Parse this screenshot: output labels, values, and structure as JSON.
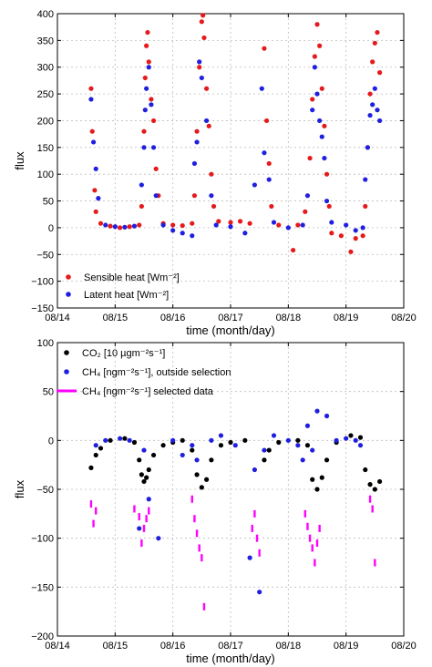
{
  "chart_data": [
    {
      "type": "scatter",
      "xlabel": "time (month/day)",
      "ylabel": "flux",
      "xlim": [
        "08/14",
        "08/20"
      ],
      "ylim": [
        -150,
        400
      ],
      "x_ticks": [
        "08/14",
        "08/15",
        "08/16",
        "08/17",
        "08/18",
        "08/19",
        "08/20"
      ],
      "y_ticks": [
        -150,
        -100,
        -50,
        0,
        50,
        100,
        150,
        200,
        250,
        300,
        350,
        400
      ],
      "grid": true,
      "legend": "bottom-left",
      "series": [
        {
          "name": "Sensible heat [Wm⁻²]",
          "color": "#e41a1c",
          "marker": "dot",
          "points": [
            [
              "08/14 14:00",
              260
            ],
            [
              "08/14 14:30",
              180
            ],
            [
              "08/14 15:30",
              70
            ],
            [
              "08/14 16:00",
              30
            ],
            [
              "08/14 18:00",
              8
            ],
            [
              "08/14 22:00",
              3
            ],
            [
              "08/15 02:00",
              0
            ],
            [
              "08/15 06:00",
              2
            ],
            [
              "08/15 10:00",
              5
            ],
            [
              "08/15 11:00",
              40
            ],
            [
              "08/15 12:00",
              180
            ],
            [
              "08/15 12:30",
              280
            ],
            [
              "08/15 13:00",
              340
            ],
            [
              "08/15 13:30",
              365
            ],
            [
              "08/15 14:00",
              310
            ],
            [
              "08/15 15:00",
              240
            ],
            [
              "08/15 16:00",
              200
            ],
            [
              "08/15 17:00",
              110
            ],
            [
              "08/15 18:00",
              60
            ],
            [
              "08/15 20:00",
              8
            ],
            [
              "08/16 00:00",
              5
            ],
            [
              "08/16 04:00",
              4
            ],
            [
              "08/16 08:00",
              8
            ],
            [
              "08/16 09:00",
              60
            ],
            [
              "08/16 10:00",
              180
            ],
            [
              "08/16 11:00",
              300
            ],
            [
              "08/16 12:00",
              385
            ],
            [
              "08/16 12:30",
              397
            ],
            [
              "08/16 13:00",
              355
            ],
            [
              "08/16 14:00",
              260
            ],
            [
              "08/16 15:00",
              190
            ],
            [
              "08/16 16:00",
              100
            ],
            [
              "08/16 17:00",
              40
            ],
            [
              "08/16 19:00",
              12
            ],
            [
              "08/17 00:00",
              10
            ],
            [
              "08/17 04:00",
              12
            ],
            [
              "08/17 08:00",
              8
            ],
            [
              "08/17 14:00",
              335
            ],
            [
              "08/17 15:00",
              200
            ],
            [
              "08/17 16:00",
              120
            ],
            [
              "08/17 17:00",
              40
            ],
            [
              "08/17 20:00",
              5
            ],
            [
              "08/18 02:00",
              -42
            ],
            [
              "08/18 04:00",
              5
            ],
            [
              "08/18 07:00",
              30
            ],
            [
              "08/18 09:00",
              130
            ],
            [
              "08/18 10:00",
              240
            ],
            [
              "08/18 11:00",
              320
            ],
            [
              "08/18 12:00",
              380
            ],
            [
              "08/18 13:00",
              340
            ],
            [
              "08/18 14:00",
              260
            ],
            [
              "08/18 15:00",
              190
            ],
            [
              "08/18 16:00",
              100
            ],
            [
              "08/18 17:00",
              40
            ],
            [
              "08/18 18:00",
              -10
            ],
            [
              "08/18 22:00",
              -15
            ],
            [
              "08/19 02:00",
              -45
            ],
            [
              "08/19 04:00",
              -20
            ],
            [
              "08/19 07:00",
              -15
            ],
            [
              "08/19 08:00",
              40
            ],
            [
              "08/19 09:00",
              150
            ],
            [
              "08/19 10:00",
              250
            ],
            [
              "08/19 11:00",
              310
            ],
            [
              "08/19 12:00",
              345
            ],
            [
              "08/19 13:00",
              365
            ],
            [
              "08/19 14:00",
              290
            ]
          ]
        },
        {
          "name": "Latent heat [Wm⁻²]",
          "color": "#1f1fe0",
          "marker": "dot",
          "points": [
            [
              "08/14 14:00",
              240
            ],
            [
              "08/14 15:00",
              160
            ],
            [
              "08/14 16:00",
              110
            ],
            [
              "08/14 17:00",
              55
            ],
            [
              "08/14 20:00",
              5
            ],
            [
              "08/15 00:00",
              2
            ],
            [
              "08/15 04:00",
              1
            ],
            [
              "08/15 08:00",
              3
            ],
            [
              "08/15 11:00",
              80
            ],
            [
              "08/15 12:00",
              150
            ],
            [
              "08/15 12:30",
              220
            ],
            [
              "08/15 13:00",
              260
            ],
            [
              "08/15 14:00",
              300
            ],
            [
              "08/15 15:00",
              230
            ],
            [
              "08/15 16:00",
              150
            ],
            [
              "08/15 17:00",
              60
            ],
            [
              "08/15 20:00",
              5
            ],
            [
              "08/16 00:00",
              -5
            ],
            [
              "08/16 04:00",
              -10
            ],
            [
              "08/16 08:00",
              -15
            ],
            [
              "08/16 09:00",
              120
            ],
            [
              "08/16 10:00",
              160
            ],
            [
              "08/16 11:00",
              310
            ],
            [
              "08/16 12:00",
              280
            ],
            [
              "08/16 14:00",
              200
            ],
            [
              "08/16 16:00",
              60
            ],
            [
              "08/16 18:00",
              5
            ],
            [
              "08/17 00:00",
              2
            ],
            [
              "08/17 06:00",
              -10
            ],
            [
              "08/17 10:00",
              80
            ],
            [
              "08/17 13:00",
              260
            ],
            [
              "08/17 14:00",
              140
            ],
            [
              "08/17 16:00",
              90
            ],
            [
              "08/17 18:00",
              10
            ],
            [
              "08/18 00:00",
              0
            ],
            [
              "08/18 06:00",
              5
            ],
            [
              "08/18 08:00",
              60
            ],
            [
              "08/18 10:00",
              220
            ],
            [
              "08/18 11:00",
              300
            ],
            [
              "08/18 12:00",
              250
            ],
            [
              "08/18 13:00",
              200
            ],
            [
              "08/18 14:00",
              170
            ],
            [
              "08/18 15:00",
              130
            ],
            [
              "08/18 16:00",
              50
            ],
            [
              "08/18 18:00",
              10
            ],
            [
              "08/19 00:00",
              5
            ],
            [
              "08/19 04:00",
              -5
            ],
            [
              "08/19 07:00",
              0
            ],
            [
              "08/19 08:00",
              90
            ],
            [
              "08/19 09:00",
              150
            ],
            [
              "08/19 10:00",
              210
            ],
            [
              "08/19 11:00",
              230
            ],
            [
              "08/19 12:00",
              260
            ],
            [
              "08/19 13:00",
              220
            ],
            [
              "08/19 14:00",
              200
            ]
          ]
        }
      ]
    },
    {
      "type": "scatter",
      "xlabel": "time (month/day)",
      "ylabel": "flux",
      "xlim": [
        "08/14",
        "08/20"
      ],
      "ylim": [
        -200,
        100
      ],
      "x_ticks": [
        "08/14",
        "08/15",
        "08/16",
        "08/17",
        "08/18",
        "08/19",
        "08/20"
      ],
      "y_ticks": [
        -200,
        -150,
        -100,
        -50,
        0,
        50,
        100
      ],
      "grid": true,
      "legend": "top-left",
      "series": [
        {
          "name": "CO₂ [10 µgm⁻²s⁻¹]",
          "color": "#000000",
          "marker": "dot",
          "points": [
            [
              "08/14 14:00",
              -28
            ],
            [
              "08/14 16:00",
              -15
            ],
            [
              "08/14 18:00",
              -8
            ],
            [
              "08/14 22:00",
              0
            ],
            [
              "08/15 04:00",
              2
            ],
            [
              "08/15 08:00",
              -2
            ],
            [
              "08/15 10:00",
              -20
            ],
            [
              "08/15 11:00",
              -35
            ],
            [
              "08/15 12:00",
              -42
            ],
            [
              "08/15 13:00",
              -38
            ],
            [
              "08/15 14:00",
              -30
            ],
            [
              "08/15 16:00",
              -15
            ],
            [
              "08/15 20:00",
              -5
            ],
            [
              "08/16 00:00",
              -2
            ],
            [
              "08/16 04:00",
              0
            ],
            [
              "08/16 08:00",
              -10
            ],
            [
              "08/16 10:00",
              -35
            ],
            [
              "08/16 12:00",
              -48
            ],
            [
              "08/16 14:00",
              -40
            ],
            [
              "08/16 16:00",
              -20
            ],
            [
              "08/16 20:00",
              -5
            ],
            [
              "08/17 00:00",
              -2
            ],
            [
              "08/17 06:00",
              0
            ],
            [
              "08/17 14:00",
              -20
            ],
            [
              "08/17 16:00",
              -10
            ],
            [
              "08/17 20:00",
              -2
            ],
            [
              "08/18 04:00",
              0
            ],
            [
              "08/18 08:00",
              -5
            ],
            [
              "08/18 10:00",
              -40
            ],
            [
              "08/18 12:00",
              -50
            ],
            [
              "08/18 14:00",
              -38
            ],
            [
              "08/18 16:00",
              -20
            ],
            [
              "08/18 20:00",
              -2
            ],
            [
              "08/19 02:00",
              5
            ],
            [
              "08/19 06:00",
              3
            ],
            [
              "08/19 08:00",
              -30
            ],
            [
              "08/19 10:00",
              -45
            ],
            [
              "08/19 12:00",
              -50
            ],
            [
              "08/19 14:00",
              -42
            ]
          ]
        },
        {
          "name": "CH₄ [ngm⁻²s⁻¹], outside selection",
          "color": "#1f1fe0",
          "marker": "dot",
          "points": [
            [
              "08/14 16:00",
              -5
            ],
            [
              "08/14 20:00",
              0
            ],
            [
              "08/15 02:00",
              2
            ],
            [
              "08/15 06:00",
              0
            ],
            [
              "08/15 10:00",
              -90
            ],
            [
              "08/15 12:00",
              -10
            ],
            [
              "08/15 14:00",
              -60
            ],
            [
              "08/15 18:00",
              -100
            ],
            [
              "08/16 00:00",
              0
            ],
            [
              "08/16 04:00",
              -15
            ],
            [
              "08/16 08:00",
              -5
            ],
            [
              "08/16 10:00",
              -20
            ],
            [
              "08/16 16:00",
              0
            ],
            [
              "08/16 20:00",
              5
            ],
            [
              "08/17 02:00",
              -5
            ],
            [
              "08/17 08:00",
              -120
            ],
            [
              "08/17 10:00",
              -30
            ],
            [
              "08/17 12:00",
              -155
            ],
            [
              "08/17 14:00",
              -10
            ],
            [
              "08/17 18:00",
              5
            ],
            [
              "08/18 00:00",
              0
            ],
            [
              "08/18 04:00",
              -5
            ],
            [
              "08/18 06:00",
              -20
            ],
            [
              "08/18 08:00",
              15
            ],
            [
              "08/18 10:00",
              -10
            ],
            [
              "08/18 12:00",
              30
            ],
            [
              "08/18 16:00",
              25
            ],
            [
              "08/18 20:00",
              0
            ],
            [
              "08/19 00:00",
              2
            ],
            [
              "08/19 04:00",
              0
            ],
            [
              "08/19 06:00",
              -5
            ]
          ]
        },
        {
          "name": "CH₄ [ngm⁻²s⁻¹] selected data",
          "color": "#ff00ff",
          "marker": "bar",
          "points": [
            [
              "08/14 14:00",
              -65
            ],
            [
              "08/14 15:00",
              -85
            ],
            [
              "08/14 16:00",
              -72
            ],
            [
              "08/15 08:00",
              -70
            ],
            [
              "08/15 10:00",
              -78
            ],
            [
              "08/15 11:00",
              -105
            ],
            [
              "08/15 12:00",
              -90
            ],
            [
              "08/15 13:00",
              -80
            ],
            [
              "08/15 14:00",
              -72
            ],
            [
              "08/16 08:00",
              -60
            ],
            [
              "08/16 09:00",
              -80
            ],
            [
              "08/16 10:00",
              -95
            ],
            [
              "08/16 11:00",
              -110
            ],
            [
              "08/16 12:00",
              -120
            ],
            [
              "08/16 13:00",
              -170
            ],
            [
              "08/17 09:00",
              -90
            ],
            [
              "08/17 10:00",
              -75
            ],
            [
              "08/17 11:00",
              -100
            ],
            [
              "08/17 12:00",
              -115
            ],
            [
              "08/18 07:00",
              -75
            ],
            [
              "08/18 08:00",
              -88
            ],
            [
              "08/18 09:00",
              -100
            ],
            [
              "08/18 10:00",
              -110
            ],
            [
              "08/18 11:00",
              -125
            ],
            [
              "08/18 12:00",
              -105
            ],
            [
              "08/18 13:00",
              -90
            ],
            [
              "08/19 10:00",
              -60
            ],
            [
              "08/19 11:00",
              -70
            ],
            [
              "08/19 12:00",
              -125
            ]
          ]
        }
      ]
    }
  ]
}
